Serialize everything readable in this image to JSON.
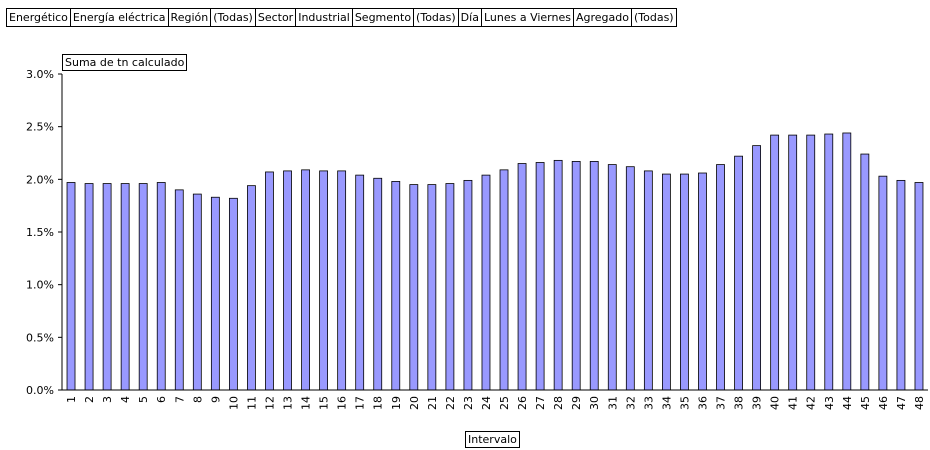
{
  "filters": [
    {
      "field": "Energético",
      "value": "Energía eléctrica"
    },
    {
      "field": "Región",
      "value": "(Todas)"
    },
    {
      "field": "Sector",
      "value": "Industrial"
    },
    {
      "field": "Segmento",
      "value": "(Todas)"
    },
    {
      "field": "Día",
      "value": "Lunes a Viernes"
    },
    {
      "field": "Agregado",
      "value": "(Todas)"
    }
  ],
  "chart_data": {
    "type": "bar",
    "y_label": "Suma de tn calculado",
    "x_label": "Intervalo",
    "categories": [
      "1",
      "2",
      "3",
      "4",
      "5",
      "6",
      "7",
      "8",
      "9",
      "10",
      "11",
      "12",
      "13",
      "14",
      "15",
      "16",
      "17",
      "18",
      "19",
      "20",
      "21",
      "22",
      "23",
      "24",
      "25",
      "26",
      "27",
      "28",
      "29",
      "30",
      "31",
      "32",
      "33",
      "34",
      "35",
      "36",
      "37",
      "38",
      "39",
      "40",
      "41",
      "42",
      "43",
      "44",
      "45",
      "46",
      "47",
      "48"
    ],
    "values": [
      1.97,
      1.96,
      1.96,
      1.96,
      1.96,
      1.97,
      1.9,
      1.86,
      1.83,
      1.82,
      1.94,
      2.07,
      2.08,
      2.09,
      2.08,
      2.08,
      2.04,
      2.01,
      1.98,
      1.95,
      1.95,
      1.96,
      1.99,
      2.04,
      2.09,
      2.15,
      2.16,
      2.18,
      2.17,
      2.17,
      2.14,
      2.12,
      2.08,
      2.05,
      2.05,
      2.06,
      2.14,
      2.22,
      2.32,
      2.42,
      2.42,
      2.42,
      2.43,
      2.44,
      2.24,
      2.03,
      1.99,
      1.97
    ],
    "color": "#9999ff",
    "ylim": [
      0,
      3
    ],
    "yticks": [
      {
        "value": 0,
        "label": "0.0%"
      },
      {
        "value": 0.5,
        "label": "0.5%"
      },
      {
        "value": 1,
        "label": "1.0%"
      },
      {
        "value": 1.5,
        "label": "1.5%"
      },
      {
        "value": 2,
        "label": "2.0%"
      },
      {
        "value": 2.5,
        "label": "2.5%"
      },
      {
        "value": 3,
        "label": "3.0%"
      }
    ]
  }
}
